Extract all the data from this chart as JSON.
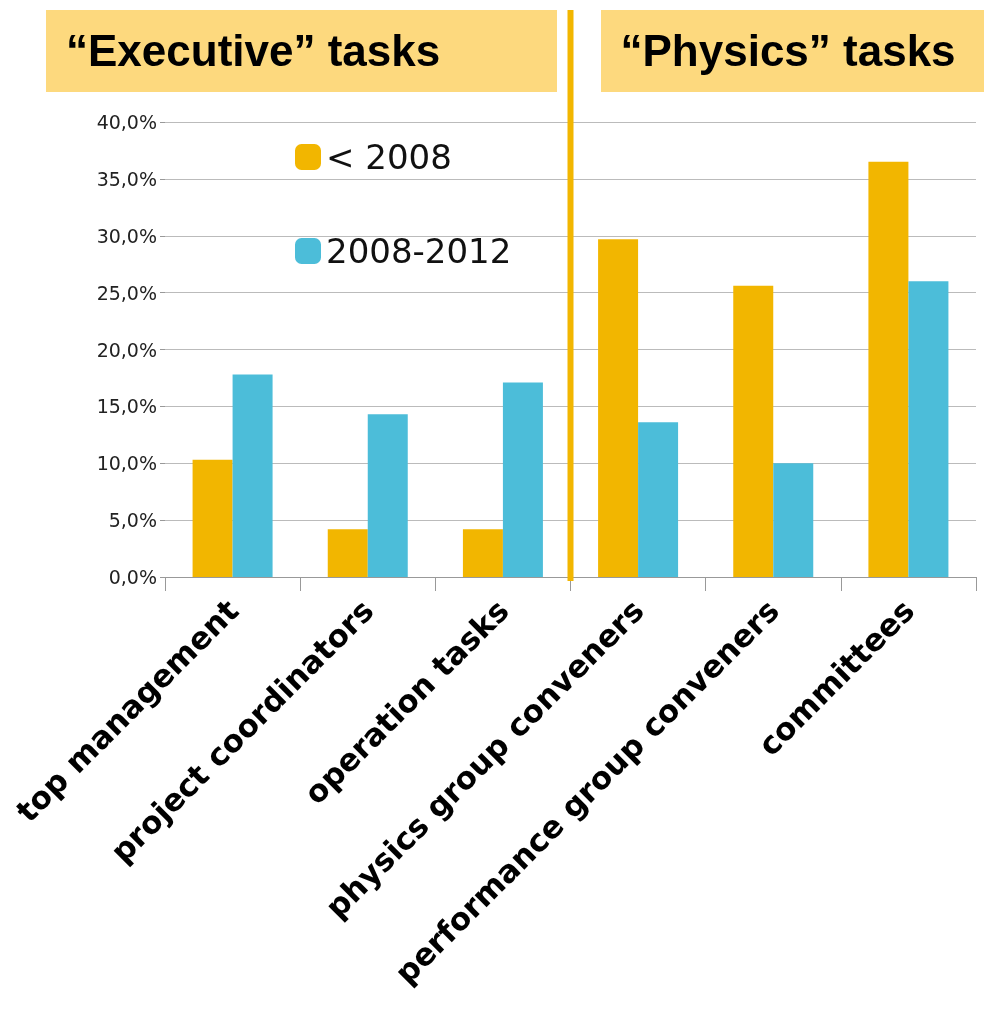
{
  "chart_data": {
    "type": "bar",
    "annotations": [
      "“Executive” tasks",
      "“Physics” tasks"
    ],
    "categories": [
      "top management",
      "project coordinators",
      "operation tasks",
      "physics group conveners",
      "performance group conveners",
      "committees"
    ],
    "series": [
      {
        "name": "< 2008",
        "color": "#f2b600",
        "values": [
          10.3,
          4.2,
          4.2,
          29.7,
          25.6,
          36.5
        ]
      },
      {
        "name": "2008-2012",
        "color": "#4cbdd9",
        "values": [
          17.8,
          14.3,
          17.1,
          13.6,
          10.0,
          26.0
        ]
      }
    ],
    "ylim": [
      0,
      40
    ],
    "yticks": [
      {
        "value": 0,
        "label": "0,0%"
      },
      {
        "value": 5,
        "label": "5,0%"
      },
      {
        "value": 10,
        "label": "10,0%"
      },
      {
        "value": 15,
        "label": "15,0%"
      },
      {
        "value": 20,
        "label": "20,0%"
      },
      {
        "value": 25,
        "label": "25,0%"
      },
      {
        "value": 30,
        "label": "30,0%"
      },
      {
        "value": 35,
        "label": "35,0%"
      },
      {
        "value": 40,
        "label": "40,0%"
      }
    ],
    "ref_lines": [
      {
        "axis": "x",
        "value": "physics group conveners",
        "color": "#f2b600"
      }
    ],
    "grid": "y",
    "legend": "top left"
  }
}
